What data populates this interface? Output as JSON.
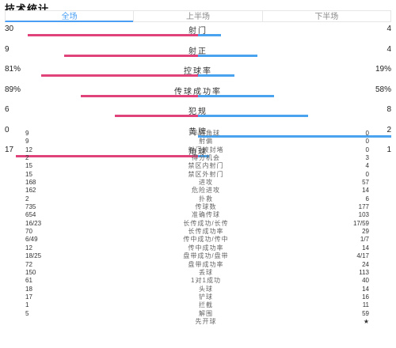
{
  "title": "技术统计",
  "tabs": [
    {
      "label": "全场",
      "active": true
    },
    {
      "label": "上半场",
      "active": false
    },
    {
      "label": "下半场",
      "active": false
    }
  ],
  "colors": {
    "home": "#e0437a",
    "away": "#4aa3ee",
    "accent": "#4a9ff5"
  },
  "bar_stats": [
    {
      "label": "射门",
      "left": "30",
      "right": "4",
      "left_share": 0.882,
      "right_share": 0.118
    },
    {
      "label": "射正",
      "left": "9",
      "right": "4",
      "left_share": 0.692,
      "right_share": 0.308
    },
    {
      "label": "控球率",
      "left": "81%",
      "right": "19%",
      "left_share": 0.81,
      "right_share": 0.19
    },
    {
      "label": "传球成功率",
      "left": "89%",
      "right": "58%",
      "left_share": 0.605,
      "right_share": 0.395
    },
    {
      "label": "犯规",
      "left": "6",
      "right": "8",
      "left_share": 0.429,
      "right_share": 0.571
    },
    {
      "label": "黄牌",
      "left": "0",
      "right": "2",
      "left_share": 0.0,
      "right_share": 1.0
    },
    {
      "label": "角球",
      "left": "17",
      "right": "1",
      "left_share": 0.944,
      "right_share": 0.056
    }
  ],
  "list_stats": [
    {
      "label": "半场角球",
      "left": "9",
      "right": "0"
    },
    {
      "label": "射偏",
      "left": "9",
      "right": "0"
    },
    {
      "label": "射门被封堵",
      "left": "12",
      "right": "0"
    },
    {
      "label": "得分机会",
      "left": "2",
      "right": "3"
    },
    {
      "label": "禁区内射门",
      "left": "15",
      "right": "4"
    },
    {
      "label": "禁区外射门",
      "left": "15",
      "right": "0"
    },
    {
      "label": "进攻",
      "left": "168",
      "right": "57"
    },
    {
      "label": "危险进攻",
      "left": "162",
      "right": "14"
    },
    {
      "label": "扑救",
      "left": "2",
      "right": "6"
    },
    {
      "label": "传球数",
      "left": "735",
      "right": "177"
    },
    {
      "label": "准确传球",
      "left": "654",
      "right": "103"
    },
    {
      "label": "长传成功/长传",
      "left": "16/23",
      "right": "17/59"
    },
    {
      "label": "长传成功率",
      "left": "70",
      "right": "29"
    },
    {
      "label": "传中成功/传中",
      "left": "6/49",
      "right": "1/7"
    },
    {
      "label": "传中成功率",
      "left": "12",
      "right": "14"
    },
    {
      "label": "盘带成功/盘带",
      "left": "18/25",
      "right": "4/17"
    },
    {
      "label": "盘带成功率",
      "left": "72",
      "right": "24"
    },
    {
      "label": "丢球",
      "left": "150",
      "right": "113"
    },
    {
      "label": "1对1成功",
      "left": "61",
      "right": "40"
    },
    {
      "label": "头球",
      "left": "18",
      "right": "14"
    },
    {
      "label": "铲球",
      "left": "17",
      "right": "16"
    },
    {
      "label": "拦截",
      "left": "1",
      "right": "11"
    },
    {
      "label": "解围",
      "left": "5",
      "right": "59"
    },
    {
      "label": "先开球",
      "left": "",
      "right": "★"
    }
  ]
}
